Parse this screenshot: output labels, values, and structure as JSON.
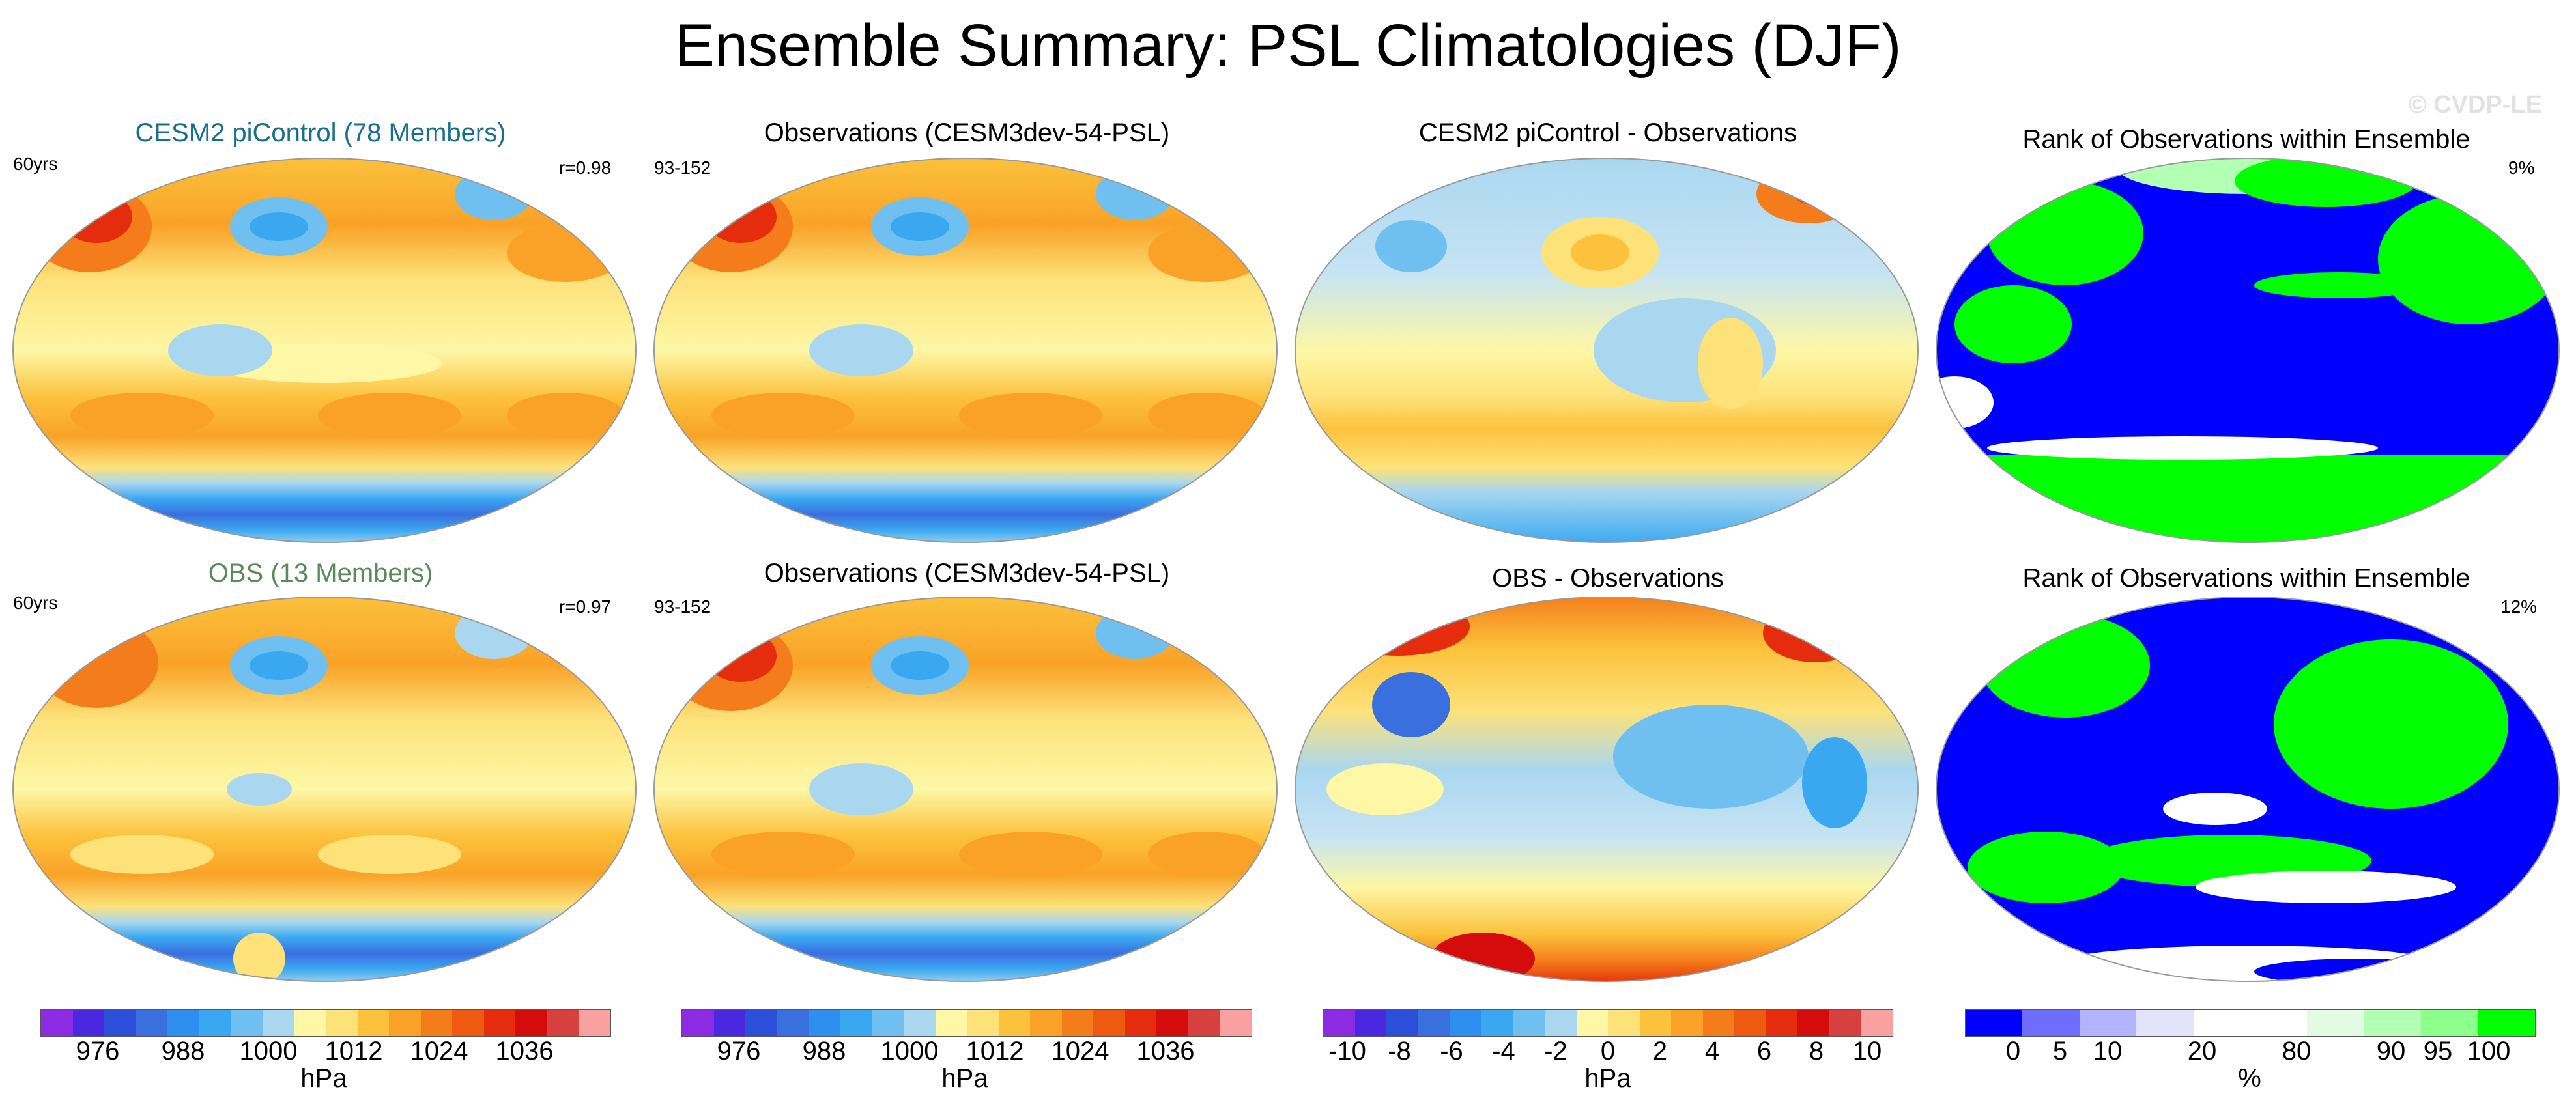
{
  "figure": {
    "title": "Ensemble Summary: PSL Climatologies (DJF)",
    "watermark": "© CVDP-LE"
  },
  "panels": {
    "r1c1": {
      "title": "CESM2 piControl (78 Members)",
      "left_label": "60yrs",
      "right_label": "r=0.98"
    },
    "r1c2": {
      "title": "Observations (CESM3dev-54-PSL)",
      "left_label": "93-152"
    },
    "r1c3": {
      "title": "CESM2 piControl - Observations"
    },
    "r1c4": {
      "title": "Rank of Observations within Ensemble",
      "right_label": "9%"
    },
    "r2c1": {
      "title": "OBS (13 Members)",
      "left_label": "60yrs",
      "right_label": "r=0.97"
    },
    "r2c2": {
      "title": "Observations (CESM3dev-54-PSL)",
      "left_label": "93-152"
    },
    "r2c3": {
      "title": "OBS - Observations"
    },
    "r2c4": {
      "title": "Rank of Observations within Ensemble",
      "right_label": "12%"
    }
  },
  "colorbars": {
    "psl": {
      "colors": [
        "#8b2be2",
        "#4a28e0",
        "#2c4fd8",
        "#3a6fe0",
        "#2f8ff0",
        "#3aa8f0",
        "#6fc0f0",
        "#a9d7f0",
        "#fdf7a6",
        "#fde27a",
        "#fcc23c",
        "#f9a227",
        "#f47c1a",
        "#ee5a10",
        "#e52c0c",
        "#d40d0c",
        "#d6403e",
        "#f9a0a0"
      ],
      "ticks": [
        "976",
        "988",
        "1000",
        "1012",
        "1024",
        "1036"
      ],
      "unit": "hPa"
    },
    "diff": {
      "colors": [
        "#8b2be2",
        "#4a28e0",
        "#2c4fd8",
        "#3a6fe0",
        "#2f8ff0",
        "#3aa8f0",
        "#6fc0f0",
        "#a9d7f0",
        "#fdf7a6",
        "#fde27a",
        "#fcc23c",
        "#f9a227",
        "#f47c1a",
        "#ee5a10",
        "#e52c0c",
        "#d40d0c",
        "#d6403e",
        "#f9a0a0"
      ],
      "ticks": [
        "-10",
        "-8",
        "-6",
        "-4",
        "-2",
        "0",
        "2",
        "4",
        "6",
        "8",
        "10"
      ],
      "unit": "hPa"
    },
    "rank": {
      "colors": [
        "#0000ff",
        "#6d6dff",
        "#b3b3ff",
        "#e3e3fb",
        "#ffffff",
        "#ffffff",
        "#e3fbe3",
        "#b3ffb3",
        "#8cff8c",
        "#00ff00"
      ],
      "ticks": [
        "0",
        "5",
        "10",
        "20",
        "80",
        "90",
        "95",
        "100"
      ],
      "unit": "%"
    }
  },
  "chart_data": {
    "type": "heatmap",
    "title": "Ensemble Summary: PSL Climatologies (DJF)",
    "variable": "PSL",
    "season": "DJF",
    "maps": [
      {
        "panel": "CESM2 piControl (78 Members)",
        "units": "hPa",
        "pattern_correlation": 0.98,
        "period": "60yrs"
      },
      {
        "panel": "Observations (CESM3dev-54-PSL)",
        "units": "hPa",
        "period": "93-152"
      },
      {
        "panel": "CESM2 piControl - Observations",
        "units": "hPa",
        "range": [
          -10,
          10
        ]
      },
      {
        "panel": "Rank of Observations within Ensemble",
        "units": "%",
        "area_outside_percent": 9
      },
      {
        "panel": "OBS (13 Members)",
        "units": "hPa",
        "pattern_correlation": 0.97,
        "period": "60yrs"
      },
      {
        "panel": "Observations (CESM3dev-54-PSL)",
        "units": "hPa",
        "period": "93-152"
      },
      {
        "panel": "OBS - Observations",
        "units": "hPa",
        "range": [
          -10,
          10
        ]
      },
      {
        "panel": "Rank of Observations within Ensemble",
        "units": "%",
        "area_outside_percent": 12
      }
    ]
  }
}
